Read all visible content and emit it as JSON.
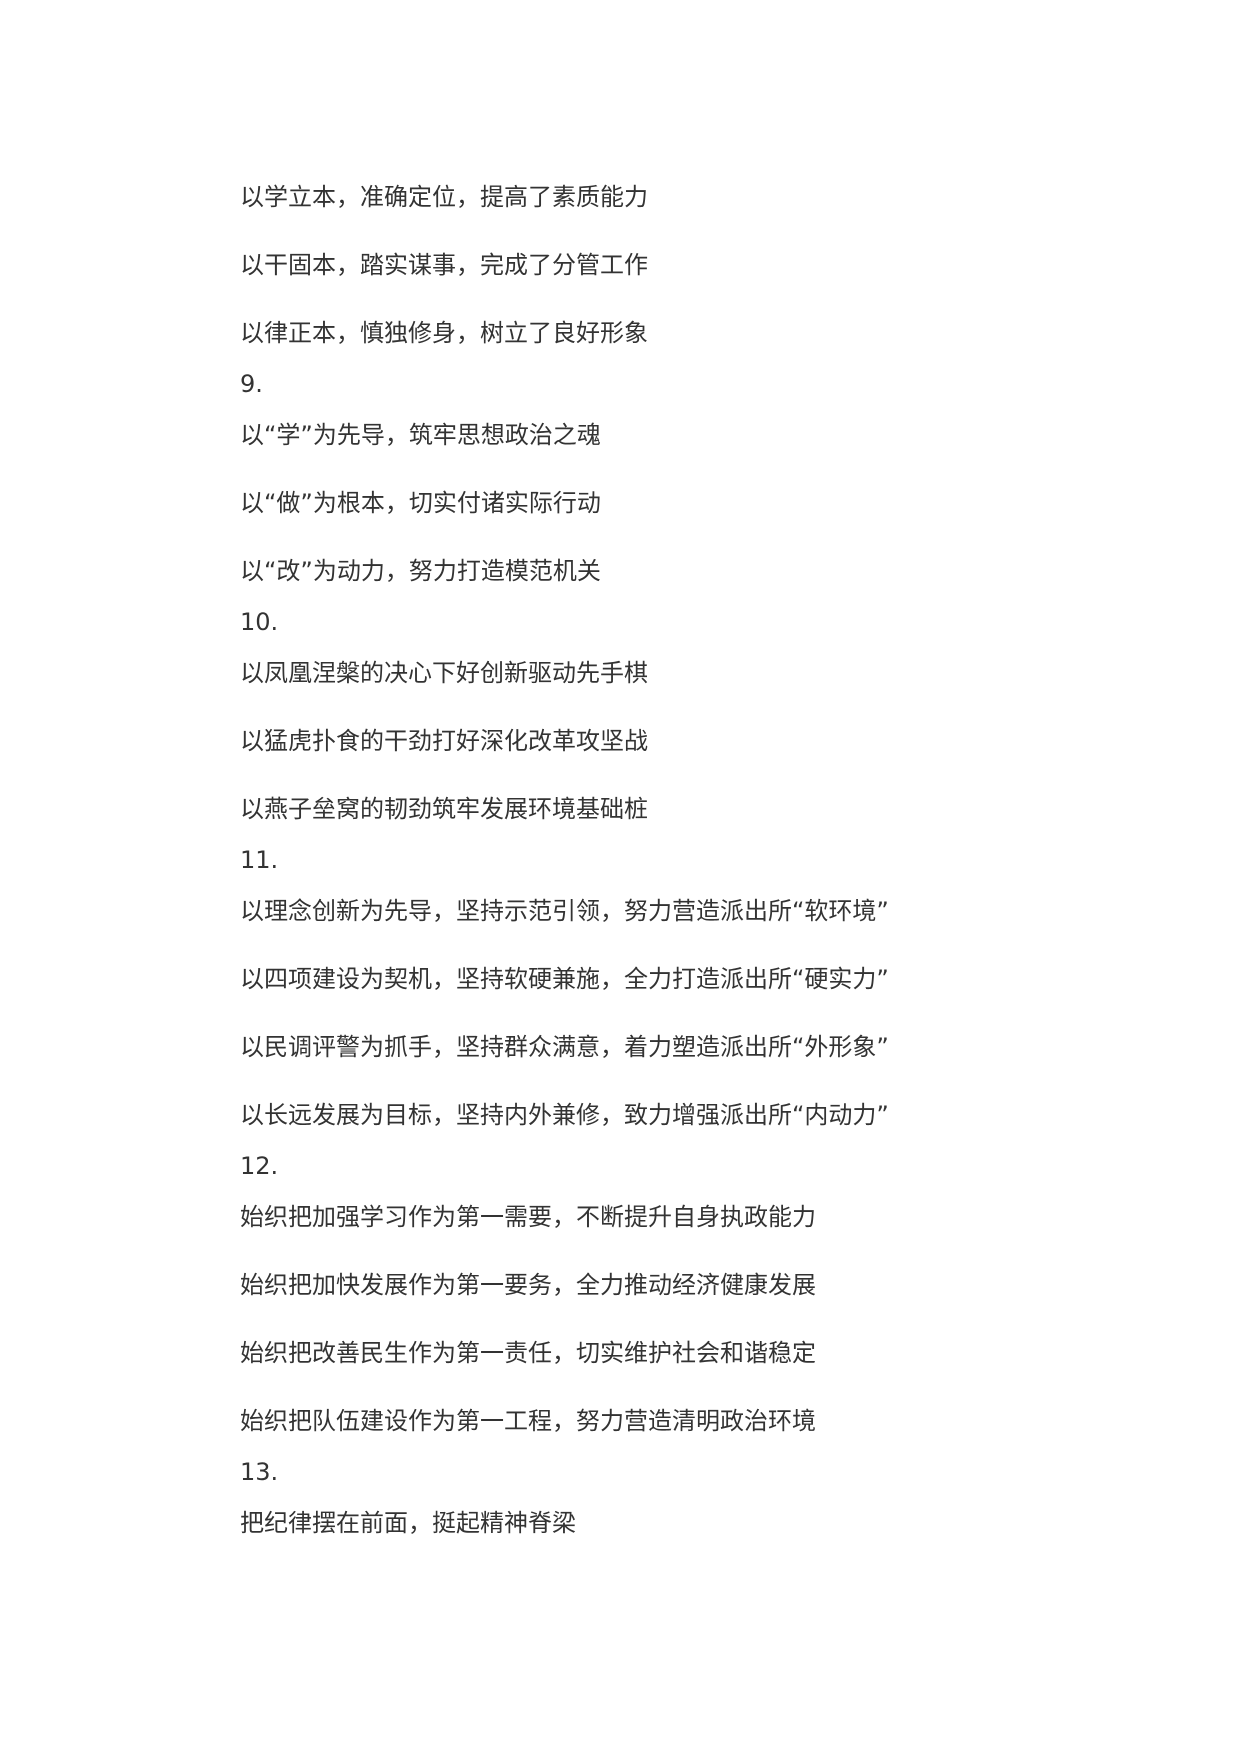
{
  "document": {
    "lines": [
      {
        "type": "item",
        "text": "以学立本，准确定位，提高了素质能力"
      },
      {
        "type": "item",
        "text": "以干固本，踏实谋事，完成了分管工作"
      },
      {
        "type": "item",
        "text": "以律正本，慎独修身，树立了良好形象"
      },
      {
        "type": "num",
        "text": "9."
      },
      {
        "type": "item",
        "text": "以“学”为先导，筑牢思想政治之魂"
      },
      {
        "type": "item",
        "text": "以“做”为根本，切实付诸实际行动"
      },
      {
        "type": "item",
        "text": "以“改”为动力，努力打造模范机关"
      },
      {
        "type": "num",
        "text": "10."
      },
      {
        "type": "item",
        "text": "以凤凰涅槃的决心下好创新驱动先手棋"
      },
      {
        "type": "item",
        "text": "以猛虎扑食的干劲打好深化改革攻坚战"
      },
      {
        "type": "item",
        "text": "以燕子垒窝的韧劲筑牢发展环境基础桩"
      },
      {
        "type": "num",
        "text": "11."
      },
      {
        "type": "item",
        "text": "以理念创新为先导，坚持示范引领，努力营造派出所“软环境”"
      },
      {
        "type": "item",
        "text": "以四项建设为契机，坚持软硬兼施，全力打造派出所“硬实力”"
      },
      {
        "type": "item",
        "text": "以民调评警为抓手，坚持群众满意，着力塑造派出所“外形象”"
      },
      {
        "type": "item",
        "text": "以长远发展为目标，坚持内外兼修，致力增强派出所“内动力”"
      },
      {
        "type": "num",
        "text": "12."
      },
      {
        "type": "item",
        "text": "始织把加强学习作为第一需要，不断提升自身执政能力"
      },
      {
        "type": "item",
        "text": "始织把加快发展作为第一要务，全力推动经济健康发展"
      },
      {
        "type": "item",
        "text": "始织把改善民生作为第一责任，切实维护社会和谐稳定"
      },
      {
        "type": "item",
        "text": "始织把队伍建设作为第一工程，努力营造清明政治环境"
      },
      {
        "type": "num",
        "text": "13."
      },
      {
        "type": "item",
        "text": "把纪律摆在前面，挺起精神脊梁"
      }
    ]
  }
}
